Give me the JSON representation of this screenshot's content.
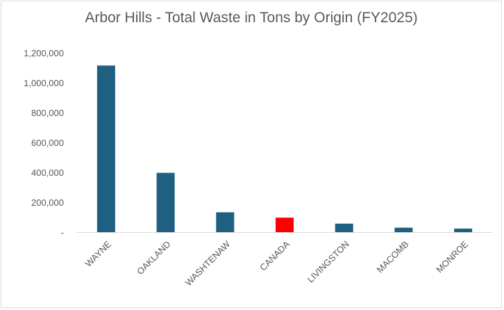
{
  "chart_data": {
    "type": "bar",
    "title": "Arbor Hills - Total Waste in Tons by Origin (FY2025)",
    "xlabel": "",
    "ylabel": "",
    "categories": [
      "WAYNE",
      "OAKLAND",
      "WASHTENAW",
      "CANADA",
      "LIVINGSTON",
      "MACOMB",
      "MONROE"
    ],
    "values": [
      1115000,
      397000,
      133000,
      97000,
      57000,
      30000,
      24000
    ],
    "ylim": [
      0,
      1200000
    ],
    "yticks": [
      "-",
      "200,000",
      "400,000",
      "600,000",
      "800,000",
      "1,000,000",
      "1,200,000"
    ],
    "grid": false,
    "legend": "none",
    "colors": {
      "default": "#1f5f82",
      "highlight": "#ff0000",
      "highlight_category": "CANADA",
      "axis": "#d9d9d9"
    }
  }
}
